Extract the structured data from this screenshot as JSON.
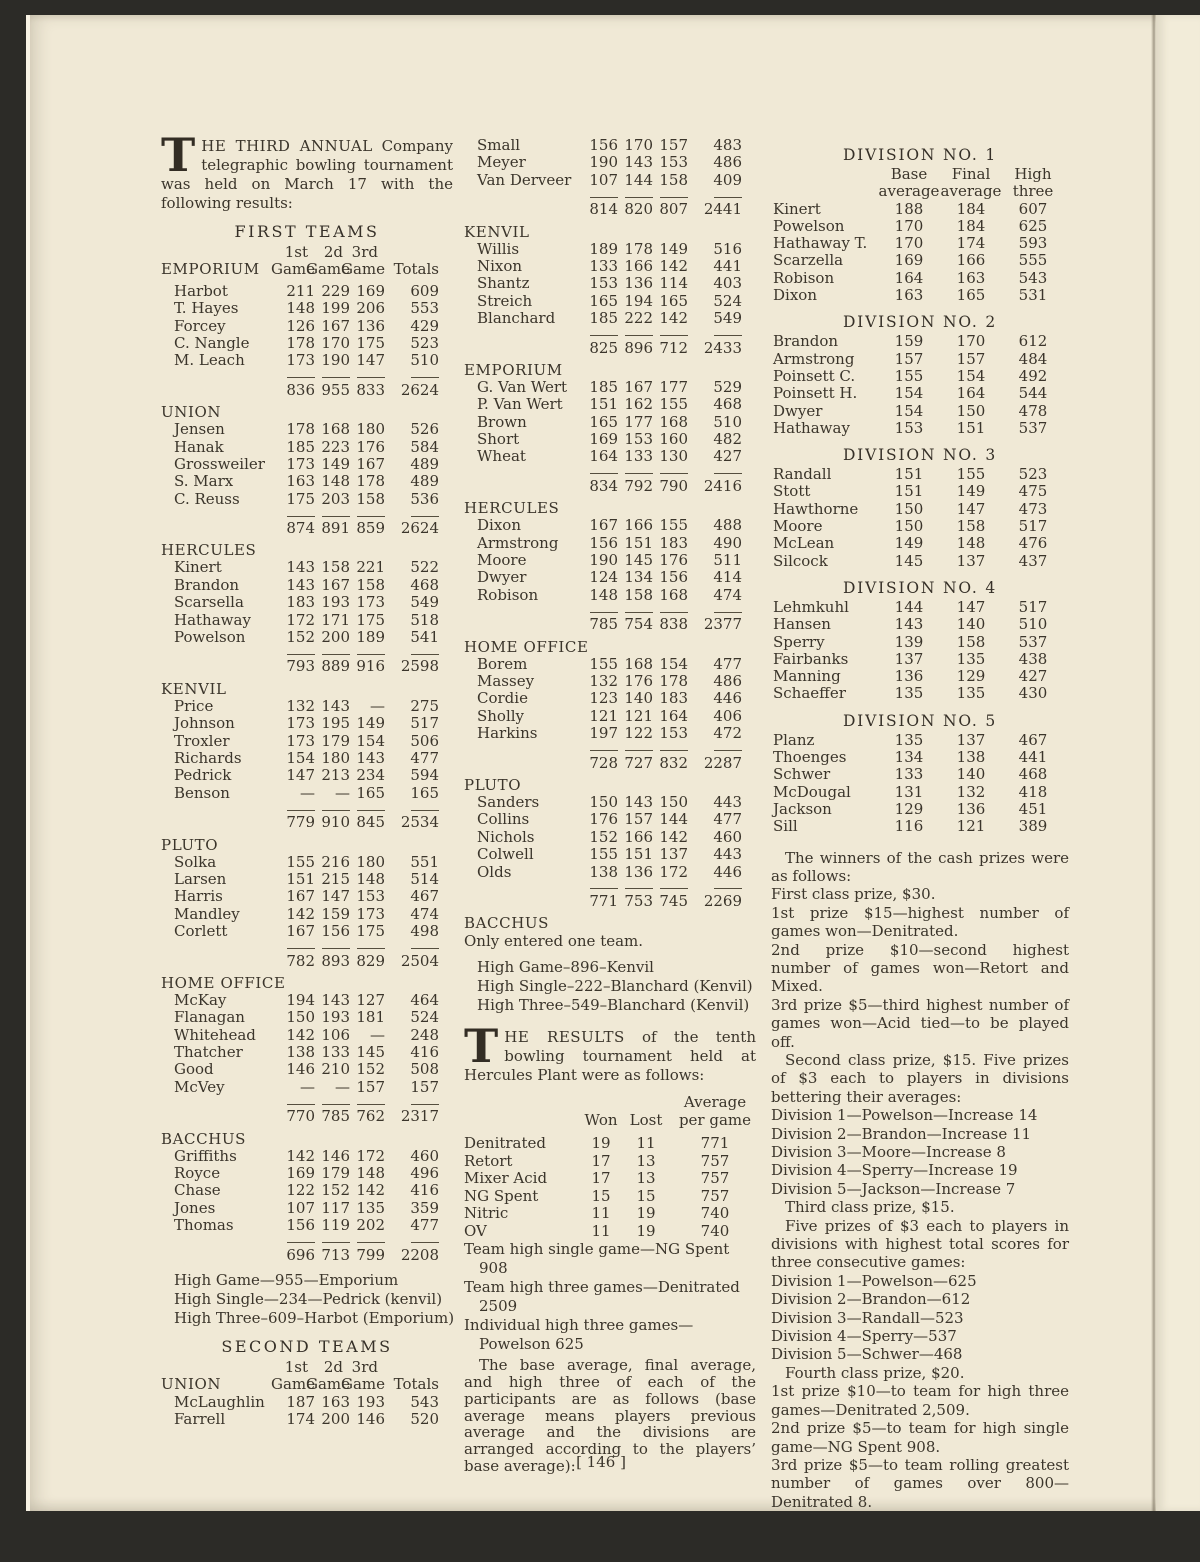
{
  "page": {
    "number": "[ 146 ]"
  },
  "article1": {
    "dropcap": "T",
    "lead_caps": "HE THIRD ANNUAL",
    "lead_rest": "Company telegraphic bowling tournament was held on March 17 with the following results:",
    "heading_first": "FIRST TEAMS",
    "heading_second": "SECOND TEAMS"
  },
  "gamehead": {
    "o1": "1st",
    "o2": "2d",
    "o3": "3rd",
    "game": "Game",
    "totals": "Totals"
  },
  "first_teams": {
    "header_team": "EMPORIUM",
    "teams": [
      {
        "team": "",
        "rows": [
          [
            "Harbot",
            "211",
            "229",
            "169",
            "609"
          ],
          [
            "T. Hayes",
            "148",
            "199",
            "206",
            "553"
          ],
          [
            "Forcey",
            "126",
            "167",
            "136",
            "429"
          ],
          [
            "C. Nangle",
            "178",
            "170",
            "175",
            "523"
          ],
          [
            "M. Leach",
            "173",
            "190",
            "147",
            "510"
          ]
        ],
        "totals": [
          "836",
          "955",
          "833",
          "2624"
        ]
      },
      {
        "team": "UNION",
        "rows": [
          [
            "Jensen",
            "178",
            "168",
            "180",
            "526"
          ],
          [
            "Hanak",
            "185",
            "223",
            "176",
            "584"
          ],
          [
            "Grossweiler",
            "173",
            "149",
            "167",
            "489"
          ],
          [
            "S. Marx",
            "163",
            "148",
            "178",
            "489"
          ],
          [
            "C. Reuss",
            "175",
            "203",
            "158",
            "536"
          ]
        ],
        "totals": [
          "874",
          "891",
          "859",
          "2624"
        ]
      },
      {
        "team": "HERCULES",
        "rows": [
          [
            "Kinert",
            "143",
            "158",
            "221",
            "522"
          ],
          [
            "Brandon",
            "143",
            "167",
            "158",
            "468"
          ],
          [
            "Scarsella",
            "183",
            "193",
            "173",
            "549"
          ],
          [
            "Hathaway",
            "172",
            "171",
            "175",
            "518"
          ],
          [
            "Powelson",
            "152",
            "200",
            "189",
            "541"
          ]
        ],
        "totals": [
          "793",
          "889",
          "916",
          "2598"
        ]
      },
      {
        "team": "KENVIL",
        "rows": [
          [
            "Price",
            "132",
            "143",
            "—",
            "275"
          ],
          [
            "Johnson",
            "173",
            "195",
            "149",
            "517"
          ],
          [
            "Troxler",
            "173",
            "179",
            "154",
            "506"
          ],
          [
            "Richards",
            "154",
            "180",
            "143",
            "477"
          ],
          [
            "Pedrick",
            "147",
            "213",
            "234",
            "594"
          ],
          [
            "Benson",
            "—",
            "—",
            "165",
            "165"
          ]
        ],
        "totals": [
          "779",
          "910",
          "845",
          "2534"
        ]
      },
      {
        "team": "PLUTO",
        "rows": [
          [
            "Solka",
            "155",
            "216",
            "180",
            "551"
          ],
          [
            "Larsen",
            "151",
            "215",
            "148",
            "514"
          ],
          [
            "Harris",
            "167",
            "147",
            "153",
            "467"
          ],
          [
            "Mandley",
            "142",
            "159",
            "173",
            "474"
          ],
          [
            "Corlett",
            "167",
            "156",
            "175",
            "498"
          ]
        ],
        "totals": [
          "782",
          "893",
          "829",
          "2504"
        ]
      },
      {
        "team": "HOME OFFICE",
        "rows": [
          [
            "McKay",
            "194",
            "143",
            "127",
            "464"
          ],
          [
            "Flanagan",
            "150",
            "193",
            "181",
            "524"
          ],
          [
            "Whitehead",
            "142",
            "106",
            "—",
            "248"
          ],
          [
            "Thatcher",
            "138",
            "133",
            "145",
            "416"
          ],
          [
            "Good",
            "146",
            "210",
            "152",
            "508"
          ],
          [
            "McVey",
            "—",
            "—",
            "157",
            "157"
          ]
        ],
        "totals": [
          "770",
          "785",
          "762",
          "2317"
        ]
      },
      {
        "team": "BACCHUS",
        "rows": [
          [
            "Griffiths",
            "142",
            "146",
            "172",
            "460"
          ],
          [
            "Royce",
            "169",
            "179",
            "148",
            "496"
          ],
          [
            "Chase",
            "122",
            "152",
            "142",
            "416"
          ],
          [
            "Jones",
            "107",
            "117",
            "135",
            "359"
          ],
          [
            "Thomas",
            "156",
            "119",
            "202",
            "477"
          ]
        ],
        "totals": [
          "696",
          "713",
          "799",
          "2208"
        ]
      }
    ],
    "highs": [
      "High Game—955—Emporium",
      "High Single—234—Pedrick (kenvil)",
      "High Three–609–Harbot (Emporium)"
    ]
  },
  "second_teams": {
    "header_team": "UNION",
    "left_rows": [
      [
        "McLaughlin",
        "187",
        "163",
        "193",
        "543"
      ],
      [
        "Farrell",
        "174",
        "200",
        "146",
        "520"
      ]
    ],
    "cont_rows": [
      [
        "Small",
        "156",
        "170",
        "157",
        "483"
      ],
      [
        "Meyer",
        "190",
        "143",
        "153",
        "486"
      ],
      [
        "Van Derveer",
        "107",
        "144",
        "158",
        "409"
      ]
    ],
    "cont_totals": [
      "814",
      "820",
      "807",
      "2441"
    ],
    "teams": [
      {
        "team": "KENVIL",
        "rows": [
          [
            "Willis",
            "189",
            "178",
            "149",
            "516"
          ],
          [
            "Nixon",
            "133",
            "166",
            "142",
            "441"
          ],
          [
            "Shantz",
            "153",
            "136",
            "114",
            "403"
          ],
          [
            "Streich",
            "165",
            "194",
            "165",
            "524"
          ],
          [
            "Blanchard",
            "185",
            "222",
            "142",
            "549"
          ]
        ],
        "totals": [
          "825",
          "896",
          "712",
          "2433"
        ]
      },
      {
        "team": "EMPORIUM",
        "rows": [
          [
            "G. Van Wert",
            "185",
            "167",
            "177",
            "529"
          ],
          [
            "P. Van Wert",
            "151",
            "162",
            "155",
            "468"
          ],
          [
            "Brown",
            "165",
            "177",
            "168",
            "510"
          ],
          [
            "Short",
            "169",
            "153",
            "160",
            "482"
          ],
          [
            "Wheat",
            "164",
            "133",
            "130",
            "427"
          ]
        ],
        "totals": [
          "834",
          "792",
          "790",
          "2416"
        ]
      },
      {
        "team": "HERCULES",
        "rows": [
          [
            "Dixon",
            "167",
            "166",
            "155",
            "488"
          ],
          [
            "Armstrong",
            "156",
            "151",
            "183",
            "490"
          ],
          [
            "Moore",
            "190",
            "145",
            "176",
            "511"
          ],
          [
            "Dwyer",
            "124",
            "134",
            "156",
            "414"
          ],
          [
            "Robison",
            "148",
            "158",
            "168",
            "474"
          ]
        ],
        "totals": [
          "785",
          "754",
          "838",
          "2377"
        ]
      },
      {
        "team": "HOME OFFICE",
        "rows": [
          [
            "Borem",
            "155",
            "168",
            "154",
            "477"
          ],
          [
            "Massey",
            "132",
            "176",
            "178",
            "486"
          ],
          [
            "Cordie",
            "123",
            "140",
            "183",
            "446"
          ],
          [
            "Sholly",
            "121",
            "121",
            "164",
            "406"
          ],
          [
            "Harkins",
            "197",
            "122",
            "153",
            "472"
          ]
        ],
        "totals": [
          "728",
          "727",
          "832",
          "2287"
        ]
      },
      {
        "team": "PLUTO",
        "rows": [
          [
            "Sanders",
            "150",
            "143",
            "150",
            "443"
          ],
          [
            "Collins",
            "176",
            "157",
            "144",
            "477"
          ],
          [
            "Nichols",
            "152",
            "166",
            "142",
            "460"
          ],
          [
            "Colwell",
            "155",
            "151",
            "137",
            "443"
          ],
          [
            "Olds",
            "138",
            "136",
            "172",
            "446"
          ]
        ],
        "totals": [
          "771",
          "753",
          "745",
          "2269"
        ]
      }
    ],
    "bacchus_team": "BACCHUS",
    "bacchus_note": "Only entered one team.",
    "highs": [
      "High Game–896–Kenvil",
      "High Single–222–Blanchard (Kenvil)",
      "High Three–549–Blanchard (Kenvil)"
    ]
  },
  "article2": {
    "dropcap": "T",
    "lead_caps": "HE RESULTS",
    "lead_rest": "of the tenth bowling tournament held at Hercules Plant were as follows:",
    "standings_head": {
      "won": "Won",
      "lost": "Lost",
      "avg_top": "Average",
      "avg_bottom": "per game"
    },
    "standings": [
      [
        "Denitrated",
        "19",
        "11",
        "771"
      ],
      [
        "Retort",
        "17",
        "13",
        "757"
      ],
      [
        "Mixer Acid",
        "17",
        "13",
        "757"
      ],
      [
        "NG Spent",
        "15",
        "15",
        "757"
      ],
      [
        "Nitric",
        "11",
        "19",
        "740"
      ],
      [
        "OV",
        "11",
        "19",
        "740"
      ]
    ],
    "notes": [
      "Team high single game—NG Spent 908",
      "Team high three games—Denitrated 2509",
      "Individual high three games—Powelson 625"
    ],
    "base_para": "The base average, final average, and high three of each of the participants are as follows (base average means players previous average and the divisions are arranged according to the players’ base average):"
  },
  "divisions": {
    "head": {
      "c1a": "Base",
      "c1b": "average",
      "c2a": "Final",
      "c2b": "average",
      "c3a": "High",
      "c3b": "three"
    },
    "group1": {
      "title": "DIVISION NO. 1",
      "rows": [
        [
          "Kinert",
          "188",
          "184",
          "607"
        ],
        [
          "Powelson",
          "170",
          "184",
          "625"
        ],
        [
          "Hathaway T.",
          "170",
          "174",
          "593"
        ],
        [
          "Scarzella",
          "169",
          "166",
          "555"
        ],
        [
          "Robison",
          "164",
          "163",
          "543"
        ],
        [
          "Dixon",
          "163",
          "165",
          "531"
        ]
      ]
    },
    "groups_rest": [
      {
        "title": "DIVISION NO. 2",
        "rows": [
          [
            "Brandon",
            "159",
            "170",
            "612"
          ],
          [
            "Armstrong",
            "157",
            "157",
            "484"
          ],
          [
            "Poinsett C.",
            "155",
            "154",
            "492"
          ],
          [
            "Poinsett H.",
            "154",
            "164",
            "544"
          ],
          [
            "Dwyer",
            "154",
            "150",
            "478"
          ],
          [
            "Hathaway",
            "153",
            "151",
            "537"
          ]
        ]
      },
      {
        "title": "DIVISION NO. 3",
        "rows": [
          [
            "Randall",
            "151",
            "155",
            "523"
          ],
          [
            "Stott",
            "151",
            "149",
            "475"
          ],
          [
            "Hawthorne",
            "150",
            "147",
            "473"
          ],
          [
            "Moore",
            "150",
            "158",
            "517"
          ],
          [
            "McLean",
            "149",
            "148",
            "476"
          ],
          [
            "Silcock",
            "145",
            "137",
            "437"
          ]
        ]
      },
      {
        "title": "DIVISION NO. 4",
        "rows": [
          [
            "Lehmkuhl",
            "144",
            "147",
            "517"
          ],
          [
            "Hansen",
            "143",
            "140",
            "510"
          ],
          [
            "Sperry",
            "139",
            "158",
            "537"
          ],
          [
            "Fairbanks",
            "137",
            "135",
            "438"
          ],
          [
            "Manning",
            "136",
            "129",
            "427"
          ],
          [
            "Schaeffer",
            "135",
            "135",
            "430"
          ]
        ]
      },
      {
        "title": "DIVISION NO. 5",
        "rows": [
          [
            "Planz",
            "135",
            "137",
            "467"
          ],
          [
            "Thoenges",
            "134",
            "138",
            "441"
          ],
          [
            "Schwer",
            "133",
            "140",
            "468"
          ],
          [
            "McDougal",
            "131",
            "132",
            "418"
          ],
          [
            "Jackson",
            "129",
            "136",
            "451"
          ],
          [
            "Sill",
            "116",
            "121",
            "389"
          ]
        ]
      }
    ]
  },
  "prizes": [
    {
      "style": "indent",
      "text": "The winners of the cash prizes were as follows:"
    },
    {
      "style": "flush",
      "text": "First class prize, $30."
    },
    {
      "style": "flush",
      "text": "1st prize $15—highest number of games won—Denitrated."
    },
    {
      "style": "flush",
      "text": "2nd prize $10—second highest number of games won—Retort and Mixed."
    },
    {
      "style": "flush",
      "text": "3rd prize $5—third highest number of games won—Acid tied—to be played off."
    },
    {
      "style": "indent",
      "text": "Second class prize, $15. Five prizes of $3 each to players in divisions bettering their averages:"
    },
    {
      "style": "flush",
      "text": "Division 1—Powelson—Increase 14"
    },
    {
      "style": "flush",
      "text": "Division 2—Brandon—Increase 11"
    },
    {
      "style": "flush",
      "text": "Division 3—Moore—Increase 8"
    },
    {
      "style": "flush",
      "text": "Division 4—Sperry—Increase 19"
    },
    {
      "style": "flush",
      "text": "Division 5—Jackson—Increase 7"
    },
    {
      "style": "indent",
      "text": "Third class prize, $15."
    },
    {
      "style": "indent",
      "text": "Five prizes of $3 each to players in divisions with highest total scores for three consecutive games:"
    },
    {
      "style": "flush",
      "text": "Division 1—Powelson—625"
    },
    {
      "style": "flush",
      "text": "Division 2—Brandon—612"
    },
    {
      "style": "flush",
      "text": "Division 3—Randall—523"
    },
    {
      "style": "flush",
      "text": "Division 4—Sperry—537"
    },
    {
      "style": "flush",
      "text": "Division 5—Schwer—468"
    },
    {
      "style": "indent",
      "text": "Fourth class prize, $20."
    },
    {
      "style": "flush",
      "text": "1st prize $10—to team for high three games—Denitrated 2,509."
    },
    {
      "style": "flush",
      "text": "2nd prize $5—to team for high single game—NG Spent 908."
    },
    {
      "style": "flush",
      "text": "3rd prize $5—to team rolling greatest number of games over 800—Denitrated 8."
    }
  ]
}
